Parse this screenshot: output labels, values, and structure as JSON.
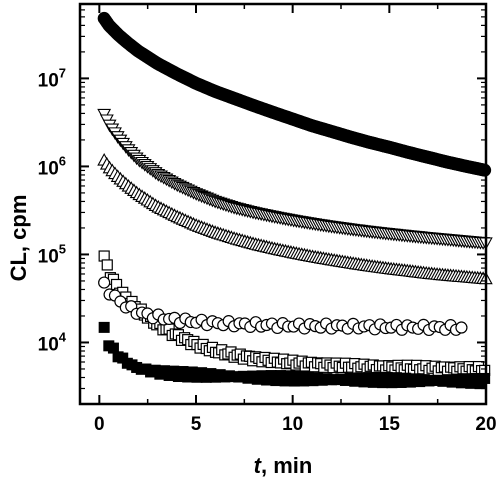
{
  "chart_data": {
    "type": "scatter",
    "title": "",
    "xlabel": "t, min",
    "xlabel_var": "t",
    "xlabel_rest": ", min",
    "ylabel": "CL, cpm",
    "xlim": [
      -1,
      20
    ],
    "ylim": [
      2000,
      70000000
    ],
    "yscale": "log",
    "x_ticks": [
      "0",
      "5",
      "10",
      "15",
      "20"
    ],
    "y_ticks": [
      {
        "value": 10000,
        "base": "10",
        "exp": "4"
      },
      {
        "value": 100000,
        "base": "10",
        "exp": "5"
      },
      {
        "value": 1000000,
        "base": "10",
        "exp": "6"
      },
      {
        "value": 10000000,
        "base": "10",
        "exp": "7"
      }
    ],
    "grid": false,
    "legend": "none",
    "series": [
      {
        "marker": "filled-circle",
        "x": [
          0.25,
          0.5,
          1,
          1.5,
          2,
          3,
          4,
          5,
          6,
          7,
          8,
          9,
          10,
          11,
          12,
          13,
          14,
          15,
          16,
          17,
          18,
          19,
          20
        ],
        "y": [
          48000000,
          40000000,
          31000000,
          25000000,
          20500000,
          14800000,
          11300000,
          8800000,
          7100000,
          5900000,
          4900000,
          4100000,
          3450000,
          2900000,
          2500000,
          2150000,
          1870000,
          1650000,
          1440000,
          1270000,
          1120000,
          1000000,
          900000
        ]
      },
      {
        "marker": "open-triangle-down",
        "x": [
          0.25,
          0.5,
          1,
          1.5,
          2,
          3,
          4,
          5,
          6,
          7,
          8,
          9,
          10,
          11,
          12,
          13,
          14,
          15,
          16,
          17,
          18,
          19,
          20
        ],
        "y": [
          3900000,
          3000000,
          2100000,
          1550000,
          1200000,
          820000,
          620000,
          490000,
          400000,
          340000,
          300000,
          270000,
          245000,
          225000,
          208000,
          194000,
          182000,
          172000,
          163000,
          155000,
          148000,
          141000,
          135000
        ]
      },
      {
        "marker": "open-triangle-up",
        "x": [
          0.25,
          0.5,
          1,
          1.5,
          2,
          3,
          4,
          5,
          6,
          7,
          8,
          9,
          10,
          11,
          12,
          13,
          14,
          15,
          16,
          17,
          18,
          19,
          20
        ],
        "y": [
          1180000,
          980000,
          750000,
          600000,
          490000,
          350000,
          270000,
          215000,
          178000,
          152000,
          132000,
          117000,
          105000,
          95000,
          87000,
          80000,
          74000,
          69000,
          65000,
          61000,
          58000,
          55500,
          53000
        ]
      },
      {
        "marker": "open-square",
        "x": [
          0.25,
          0.5,
          1,
          1.5,
          2,
          3,
          4,
          5,
          6,
          7,
          8,
          9,
          10,
          11,
          12,
          13,
          14,
          15,
          16,
          17,
          18,
          19,
          20
        ],
        "y": [
          95000,
          62000,
          40000,
          30000,
          24000,
          16000,
          12000,
          9500,
          8000,
          7200,
          6600,
          6200,
          5900,
          5700,
          5500,
          5400,
          5300,
          5200,
          5150,
          5100,
          5050,
          5000,
          4950
        ]
      },
      {
        "marker": "open-circle",
        "x": [
          0.25,
          0.5,
          1,
          1.5,
          2,
          3,
          4,
          5,
          6,
          7,
          8,
          9,
          10,
          11,
          12,
          13,
          14,
          15,
          16,
          17,
          18,
          19
        ],
        "y": [
          45000,
          38000,
          30000,
          25000,
          22000,
          19500,
          18000,
          17200,
          16600,
          16200,
          15900,
          15700,
          15500,
          15400,
          15300,
          15200,
          15100,
          15000,
          14900,
          14800,
          14700,
          14600
        ]
      },
      {
        "marker": "filled-square",
        "x": [
          0.25,
          0.5,
          1,
          1.5,
          2,
          3,
          4,
          5,
          6,
          7,
          8,
          9,
          10,
          11,
          12,
          13,
          14,
          15,
          16,
          17,
          18,
          19,
          20
        ],
        "y": [
          14000,
          9500,
          7000,
          5800,
          5100,
          4600,
          4400,
          4300,
          4200,
          4100,
          4000,
          3950,
          3900,
          3850,
          3800,
          3780,
          3760,
          3740,
          3720,
          3700,
          3680,
          3660,
          3640
        ]
      }
    ]
  }
}
